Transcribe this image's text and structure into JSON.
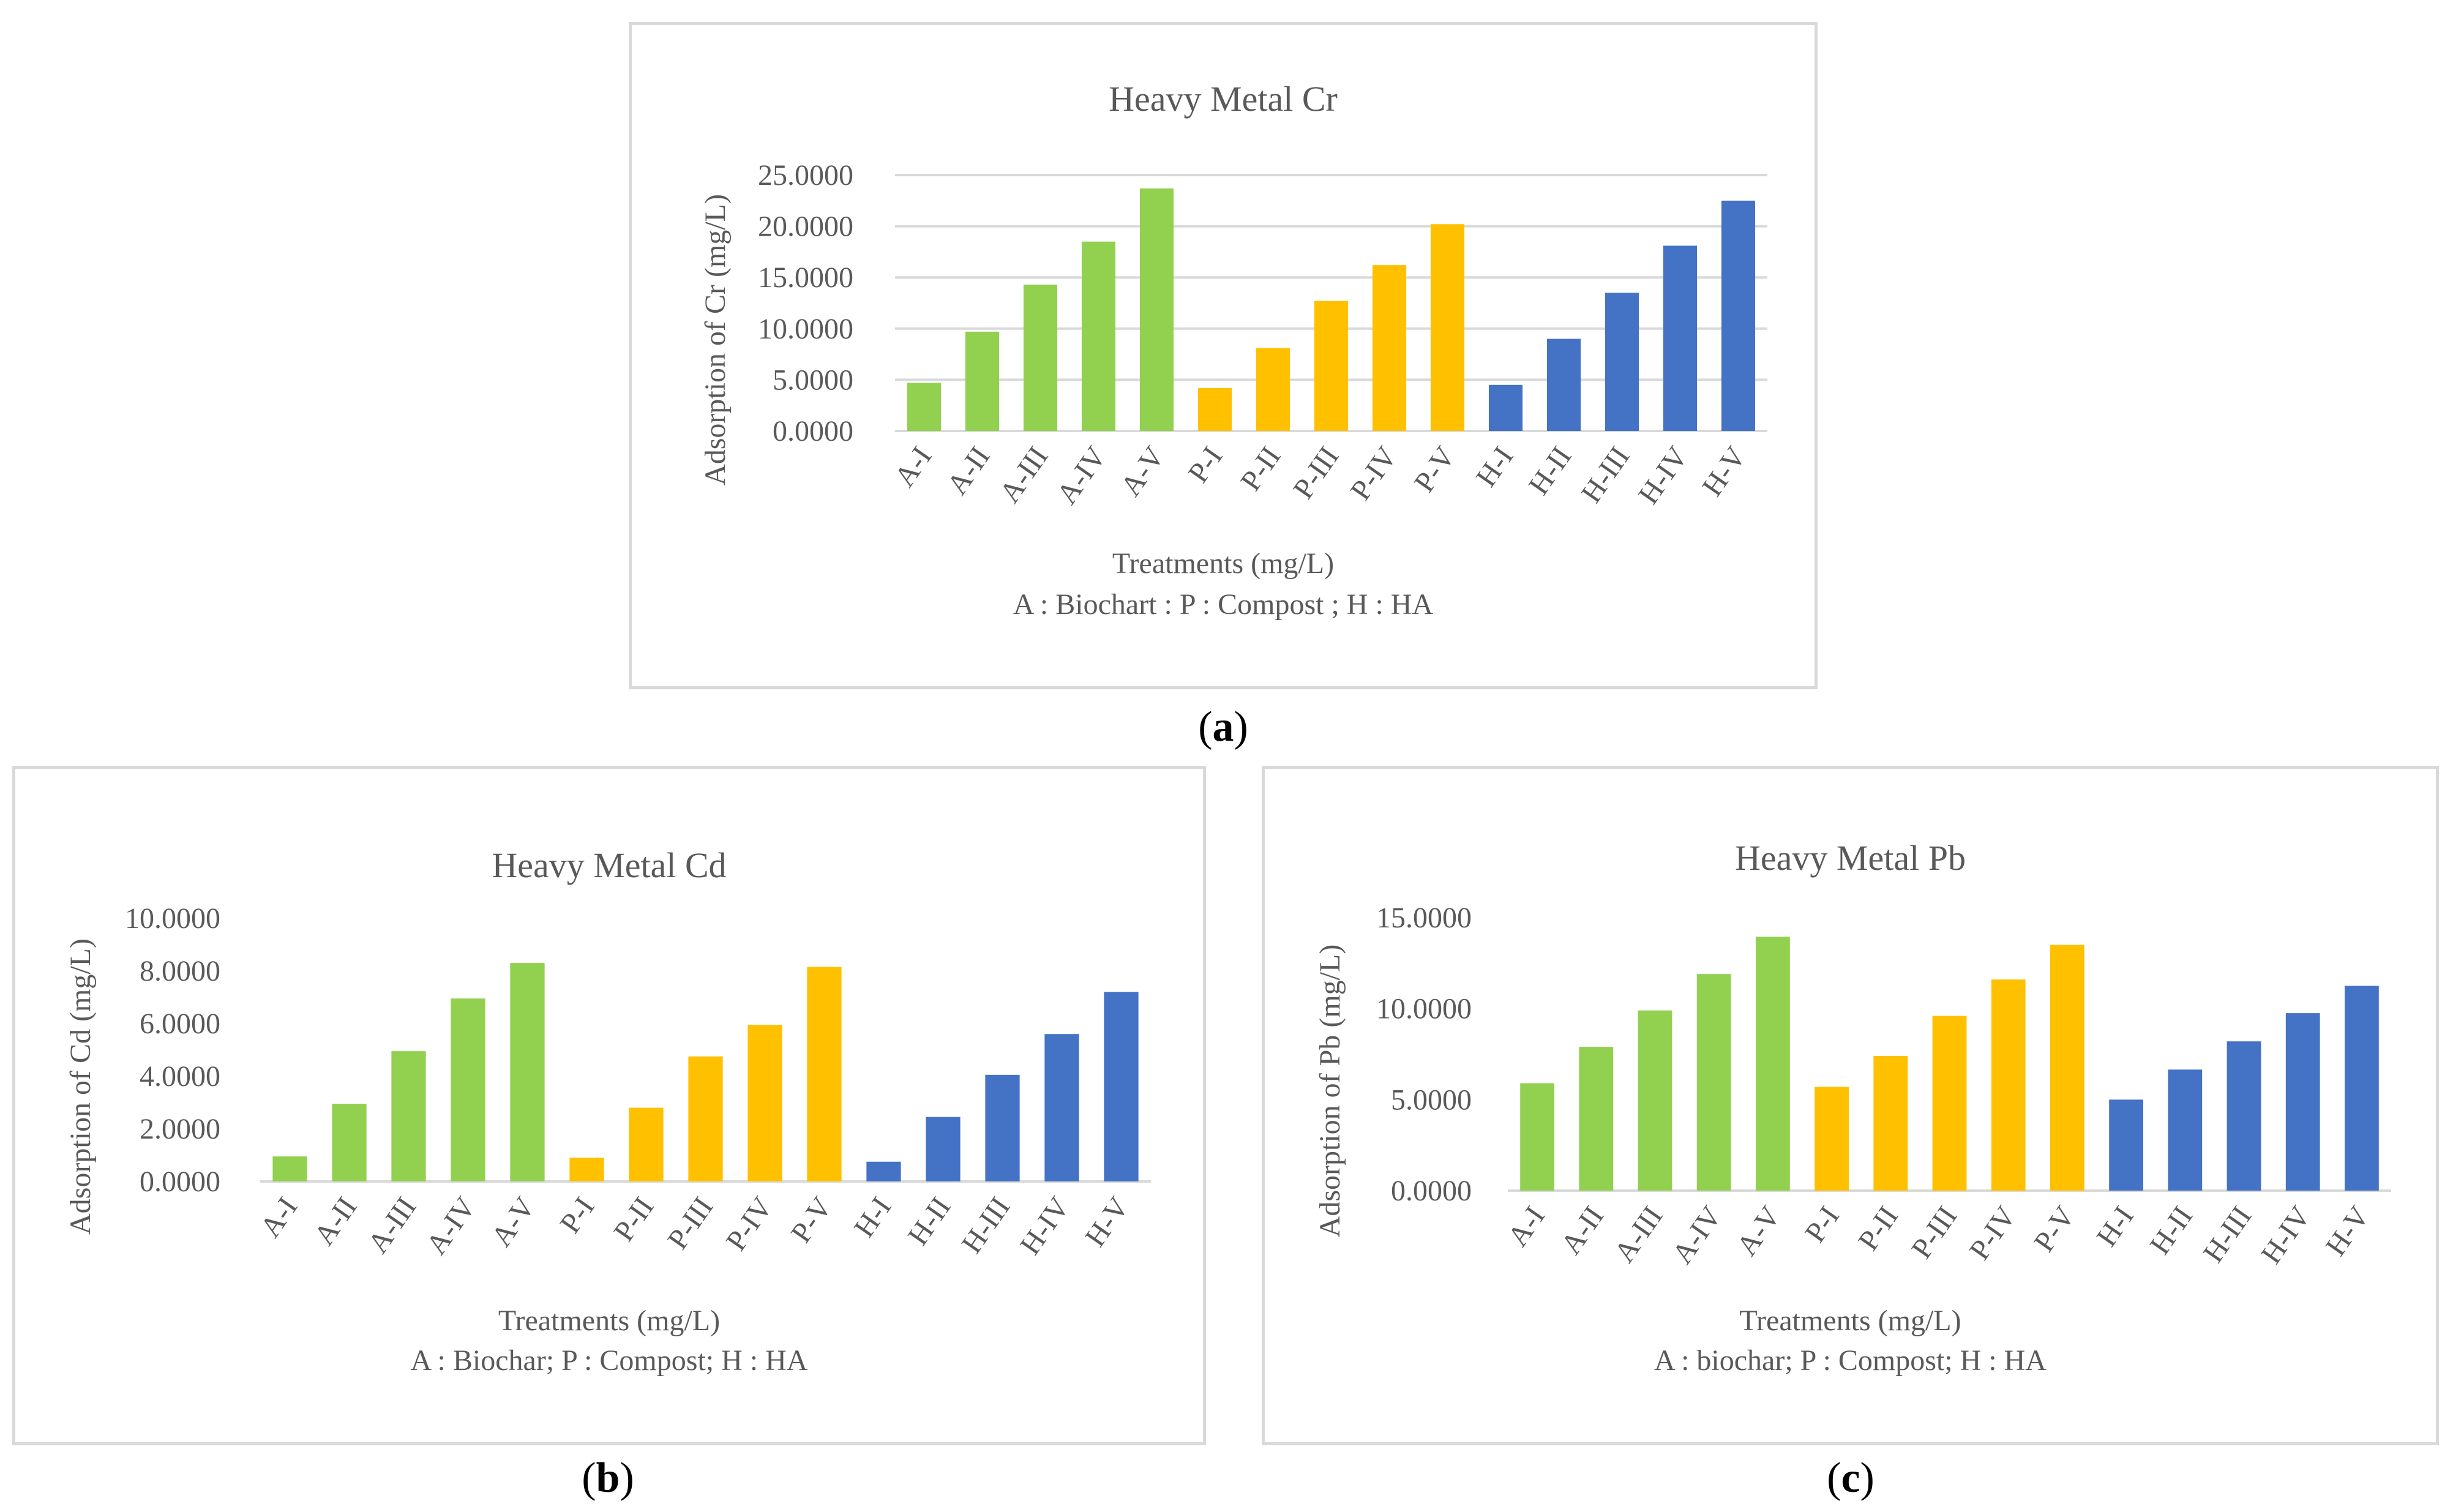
{
  "colors": {
    "biochar": "#92d050",
    "compost": "#ffc000",
    "ha": "#4472c4",
    "grid": "#d9d9d9",
    "text": "#595959"
  },
  "panels": [
    {
      "id": "a",
      "label_open": "(",
      "label_letter": "a",
      "label_close": ")"
    },
    {
      "id": "b",
      "label_open": "(",
      "label_letter": "b",
      "label_close": ")"
    },
    {
      "id": "c",
      "label_open": "(",
      "label_letter": "c",
      "label_close": ")"
    }
  ],
  "chart_data": [
    {
      "type": "bar",
      "panel": "a",
      "title": "Heavy Metal Cr",
      "ylabel": "Adsorption of  Cr (mg/L)",
      "xlabel": "Treatments (mg/L)",
      "note": "A : Biochart : P : Compost ; H : HA",
      "ylim": [
        0,
        25
      ],
      "yticks": [
        "0.0000",
        "5.0000",
        "10.0000",
        "15.0000",
        "20.0000",
        "25.0000"
      ],
      "grid": true,
      "categories": [
        "A-I",
        "A-II",
        "A-III",
        "A-IV",
        "A-V",
        "P-I",
        "P-II",
        "P-III",
        "P-IV",
        "P-V",
        "H-I",
        "H-II",
        "H-III",
        "H-IV",
        "H-V"
      ],
      "groups": [
        "biochar",
        "biochar",
        "biochar",
        "biochar",
        "biochar",
        "compost",
        "compost",
        "compost",
        "compost",
        "compost",
        "ha",
        "ha",
        "ha",
        "ha",
        "ha"
      ],
      "values": [
        4.7,
        9.7,
        14.3,
        18.5,
        23.7,
        4.2,
        8.1,
        12.7,
        16.2,
        20.2,
        4.5,
        9.0,
        13.5,
        18.1,
        22.5
      ]
    },
    {
      "type": "bar",
      "panel": "b",
      "title": "Heavy Metal Cd",
      "ylabel": "Adsorption of Cd (mg/L)",
      "xlabel": "Treatments (mg/L)",
      "note": "A : Biochar; P : Compost; H : HA",
      "ylim": [
        0,
        10
      ],
      "yticks": [
        "0.0000",
        "2.0000",
        "4.0000",
        "6.0000",
        "8.0000",
        "10.0000"
      ],
      "grid": false,
      "categories": [
        "A-I",
        "A-II",
        "A-III",
        "A-IV",
        "A-V",
        "P-I",
        "P-II",
        "P-III",
        "P-IV",
        "P-V",
        "H-I",
        "H-II",
        "H-III",
        "H-IV",
        "H-V"
      ],
      "groups": [
        "biochar",
        "biochar",
        "biochar",
        "biochar",
        "biochar",
        "compost",
        "compost",
        "compost",
        "compost",
        "compost",
        "ha",
        "ha",
        "ha",
        "ha",
        "ha"
      ],
      "values": [
        0.95,
        2.95,
        4.95,
        6.95,
        8.3,
        0.9,
        2.8,
        4.75,
        5.95,
        8.15,
        0.75,
        2.45,
        4.05,
        5.6,
        7.2
      ]
    },
    {
      "type": "bar",
      "panel": "c",
      "title": "Heavy Metal Pb",
      "ylabel": "Adsorption of Pb (mg/L)",
      "xlabel": "Treatments (mg/L)",
      "note": "A : biochar; P : Compost; H : HA",
      "ylim": [
        0,
        15
      ],
      "yticks": [
        "0.0000",
        "5.0000",
        "10.0000",
        "15.0000"
      ],
      "grid": false,
      "categories": [
        "A-I",
        "A-II",
        "A-III",
        "A-IV",
        "A-V",
        "P-I",
        "P-II",
        "P-III",
        "P-IV",
        "P-V",
        "H-I",
        "H-II",
        "H-III",
        "H-IV",
        "H-V"
      ],
      "groups": [
        "biochar",
        "biochar",
        "biochar",
        "biochar",
        "biochar",
        "compost",
        "compost",
        "compost",
        "compost",
        "compost",
        "ha",
        "ha",
        "ha",
        "ha",
        "ha"
      ],
      "values": [
        5.9,
        7.9,
        9.9,
        11.9,
        13.95,
        5.7,
        7.4,
        9.6,
        11.6,
        13.5,
        5.0,
        6.65,
        8.2,
        9.75,
        11.25
      ]
    }
  ]
}
